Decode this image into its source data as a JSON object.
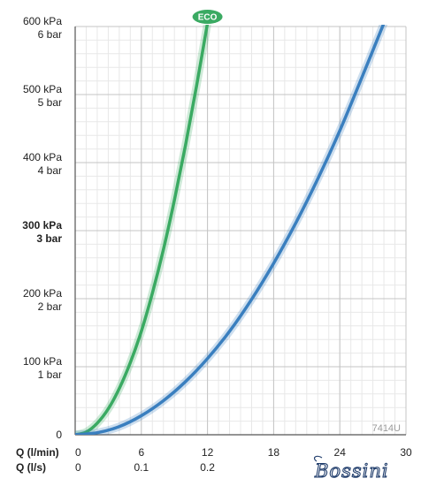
{
  "chart_data": {
    "type": "line",
    "x_axis": {
      "label": "Q (l/min)",
      "min": 0,
      "max": 30,
      "ticks": [
        0,
        6,
        12,
        18,
        24,
        30
      ]
    },
    "x_axis_secondary": {
      "label": "Q (l/s)",
      "ticks": [
        {
          "value": 0,
          "label": "0"
        },
        {
          "value": 6,
          "label": "0.1"
        },
        {
          "value": 12,
          "label": "0.2"
        }
      ]
    },
    "y_axis": {
      "min": 0,
      "max": 600,
      "ticks": [
        {
          "value": 0,
          "kpa": "0",
          "bar": "",
          "bold": false
        },
        {
          "value": 100,
          "kpa": "100 kPa",
          "bar": "1 bar",
          "bold": false
        },
        {
          "value": 200,
          "kpa": "200 kPa",
          "bar": "2 bar",
          "bold": false
        },
        {
          "value": 300,
          "kpa": "300 kPa",
          "bar": "3 bar",
          "bold": true
        },
        {
          "value": 400,
          "kpa": "400 kPa",
          "bar": "4 bar",
          "bold": false
        },
        {
          "value": 500,
          "kpa": "500 kPa",
          "bar": "5 bar",
          "bold": false
        },
        {
          "value": 600,
          "kpa": "600 kPa",
          "bar": "6 bar",
          "bold": false
        }
      ]
    },
    "grid": true,
    "series": [
      {
        "color": "#3aaa62",
        "x": [
          0,
          1,
          2,
          3,
          4,
          5,
          6,
          7,
          8,
          9,
          10,
          11,
          12
        ],
        "y": [
          0,
          4,
          17,
          38,
          68,
          106,
          152,
          208,
          272,
          345,
          425,
          512,
          605
        ]
      },
      {
        "color": "#3a7fbf",
        "x": [
          0,
          2,
          4,
          6,
          8,
          10,
          12,
          14,
          16,
          18,
          20,
          22,
          24,
          26,
          28
        ],
        "y": [
          0,
          3,
          12,
          28,
          50,
          78,
          112,
          152,
          199,
          252,
          311,
          376,
          447,
          525,
          605
        ]
      }
    ],
    "annotations": [
      {
        "text": "ECO",
        "x": 12,
        "y": 610,
        "color": "#3aaa62"
      },
      {
        "text": "7414U",
        "x": 28.5,
        "y": 8
      }
    ],
    "brand": "Bossini"
  }
}
